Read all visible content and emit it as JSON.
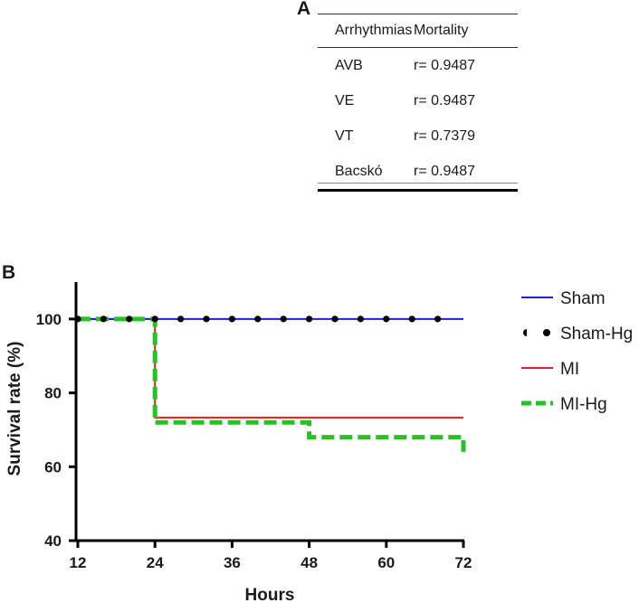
{
  "panel_a": {
    "label": "A",
    "headers": [
      "Arrhythmias",
      "Mortality"
    ],
    "rows": [
      {
        "arrhythmia": "AVB",
        "mortality": "r= 0.9487"
      },
      {
        "arrhythmia": "VE",
        "mortality": "r= 0.9487"
      },
      {
        "arrhythmia": "VT",
        "mortality": "r= 0.7379"
      },
      {
        "arrhythmia": "Bacskó",
        "mortality": "r= 0.9487"
      }
    ]
  },
  "panel_b": {
    "label": "B"
  },
  "chart_data": {
    "type": "line",
    "subtype": "kaplan-meier step",
    "xlabel": "Hours",
    "ylabel": "Survival rate (%)",
    "xlim": [
      12,
      72
    ],
    "ylim": [
      40,
      110
    ],
    "xticks": [
      12,
      24,
      36,
      48,
      60,
      72
    ],
    "yticks": [
      40,
      60,
      80,
      100
    ],
    "legend_position": "right",
    "series": [
      {
        "name": "Sham",
        "color": "#1f1fd1",
        "style": "solid",
        "x": [
          12,
          72
        ],
        "y": [
          100,
          100
        ]
      },
      {
        "name": "Sham-Hg",
        "color": "#000000",
        "style": "dotted",
        "x": [
          12,
          72
        ],
        "y": [
          100,
          100
        ]
      },
      {
        "name": "MI",
        "color": "#ee1c1c",
        "style": "solid",
        "x": [
          12,
          24,
          24,
          72
        ],
        "y": [
          100,
          100,
          73.3,
          73.3
        ]
      },
      {
        "name": "MI-Hg",
        "color": "#22c322",
        "style": "dashed",
        "x": [
          12,
          24,
          24,
          48,
          48,
          72,
          72
        ],
        "y": [
          100,
          100,
          72,
          72,
          68,
          68,
          64
        ]
      }
    ]
  }
}
